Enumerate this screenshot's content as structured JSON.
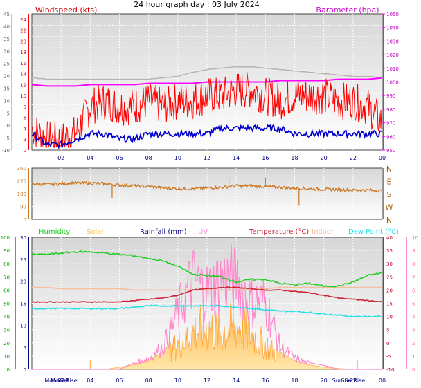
{
  "title": "24 hour graph day : 03 July 2024",
  "colors": {
    "wind": "#ff0000",
    "gust_avg": "#0000cc",
    "baro": "#ff00ff",
    "baro_grey": "#b4b4b4",
    "dir": "#cc7722",
    "humidity": "#22cc22",
    "solar": "#ffc04d",
    "rainfall": "#000080",
    "uv": "#ff88cc",
    "temperature": "#cc2233",
    "indoor": "#f5c0a0",
    "dewpoint": "#22e0e8"
  },
  "x_ticks": [
    "02",
    "04",
    "06",
    "08",
    "10",
    "12",
    "14",
    "16",
    "18",
    "20",
    "22",
    "00"
  ],
  "chart_data": [
    {
      "type": "line",
      "name": "wind-baro-panel",
      "title": "24 hour graph day : 03 July 2024",
      "left_axis": {
        "label": "Windspeed (kts)",
        "range": [
          0,
          25
        ],
        "ticks": [
          0,
          2,
          4,
          6,
          8,
          10,
          12,
          14,
          16,
          18,
          20,
          22,
          24
        ]
      },
      "outer_left_axis": {
        "range": [
          -10,
          45
        ],
        "ticks": [
          -10,
          -5,
          0,
          5,
          10,
          15,
          20,
          25,
          30,
          35,
          40,
          45
        ]
      },
      "right_axis": {
        "label": "Barometer (hpa)",
        "range": [
          950,
          1050
        ],
        "ticks": [
          950,
          960,
          970,
          980,
          990,
          1000,
          1010,
          1020,
          1030,
          1040,
          1050
        ]
      },
      "x": [
        0,
        1,
        2,
        3,
        4,
        5,
        6,
        7,
        8,
        9,
        10,
        11,
        12,
        13,
        14,
        15,
        16,
        17,
        18,
        19,
        20,
        21,
        22,
        23,
        24
      ],
      "series": [
        {
          "name": "Windspeed",
          "values": [
            4,
            2,
            2,
            3,
            8,
            9,
            8,
            8,
            9,
            8,
            9,
            9,
            10,
            10,
            11,
            11,
            10,
            9,
            10,
            10,
            10,
            9,
            9,
            8,
            5
          ]
        },
        {
          "name": "Barometer",
          "values": [
            998,
            997,
            997,
            997,
            998,
            998,
            998,
            998,
            999,
            999,
            999,
            999,
            1000,
            1000,
            1000,
            1000,
            1000,
            1001,
            1001,
            1001,
            1001,
            1002,
            1002,
            1002,
            1003
          ]
        },
        {
          "name": "grey trace",
          "values": [
            1003,
            1002,
            1002,
            1002,
            1002,
            1002,
            1002,
            1002,
            1002,
            1003,
            1004,
            1007,
            1009,
            1010,
            1011,
            1011,
            1010,
            1009,
            1008,
            1007,
            1006,
            1005,
            1004,
            1004,
            1003
          ]
        },
        {
          "name": "blue trace",
          "values": [
            3,
            1,
            1,
            2,
            3,
            3,
            2,
            2,
            3,
            3,
            3,
            3,
            3,
            4,
            4,
            4,
            4,
            4,
            3,
            3,
            3,
            3,
            3,
            3,
            3
          ]
        }
      ]
    },
    {
      "type": "line",
      "name": "direction-panel",
      "left_axis": {
        "range": [
          0,
          360
        ],
        "ticks": [
          0,
          90,
          180,
          270,
          360
        ]
      },
      "right_axis": {
        "ticks": [
          "N",
          "E",
          "S",
          "W",
          "N"
        ]
      },
      "x": [
        0,
        1,
        2,
        3,
        4,
        5,
        6,
        7,
        8,
        9,
        10,
        11,
        12,
        13,
        14,
        15,
        16,
        17,
        18,
        19,
        20,
        21,
        22,
        23,
        24
      ],
      "series": [
        {
          "name": "Wind direction",
          "values": [
            250,
            245,
            250,
            255,
            255,
            250,
            240,
            235,
            230,
            220,
            215,
            215,
            220,
            225,
            235,
            235,
            230,
            225,
            220,
            215,
            210,
            210,
            205,
            205,
            200
          ]
        }
      ]
    },
    {
      "type": "area",
      "name": "temp-hum-solar-panel",
      "legend": [
        "Humidity",
        "Solar",
        "Rainfall (mm)",
        "UV",
        "Temperature (°C)",
        "Indoor",
        "Dew Point (°C)"
      ],
      "left_axis": {
        "range": [
          0,
          100
        ],
        "ticks": [
          0,
          10,
          20,
          30,
          40,
          50,
          60,
          70,
          80,
          90,
          100
        ]
      },
      "rain_axis": {
        "range": [
          0,
          30
        ],
        "ticks": [
          0,
          5,
          10,
          15,
          20,
          25,
          30
        ]
      },
      "temp_axis": {
        "range": [
          -10,
          40
        ],
        "ticks": [
          -10,
          -5,
          0,
          5,
          10,
          15,
          20,
          25,
          30,
          35,
          40
        ]
      },
      "uv_axis": {
        "range": [
          0,
          10
        ],
        "ticks": [
          0,
          1,
          2,
          3,
          4,
          5,
          6,
          7,
          8,
          9,
          10
        ]
      },
      "bottom_labels": [
        "MoonRise",
        "MoonSet",
        "Sun Set",
        "Sun Rise"
      ],
      "x": [
        0,
        1,
        2,
        3,
        4,
        5,
        6,
        7,
        8,
        9,
        10,
        11,
        12,
        13,
        14,
        15,
        16,
        17,
        18,
        19,
        20,
        21,
        22,
        23,
        24
      ],
      "series": [
        {
          "name": "Humidity",
          "values": [
            87,
            87,
            88,
            89,
            89,
            88,
            87,
            86,
            84,
            82,
            78,
            72,
            71,
            70,
            66,
            68,
            68,
            65,
            64,
            65,
            63,
            63,
            66,
            71,
            73
          ]
        },
        {
          "name": "Temperature (°C)",
          "values": [
            15.5,
            15.5,
            15.5,
            15.5,
            15.5,
            15.5,
            15.5,
            16,
            16.5,
            17,
            18,
            20,
            20.5,
            21,
            21,
            20.5,
            20,
            20,
            19.5,
            19,
            18,
            17,
            16.5,
            16,
            15.5
          ]
        },
        {
          "name": "Dew Point (°C)",
          "values": [
            13,
            13,
            13,
            13,
            13,
            13,
            13,
            13.5,
            14,
            14,
            14,
            14,
            14,
            14,
            13.5,
            13,
            12.5,
            12,
            12,
            11.5,
            11,
            10.5,
            10,
            10,
            10
          ]
        },
        {
          "name": "Indoor",
          "values": [
            21,
            21,
            20.5,
            20.5,
            20.5,
            20.5,
            20.5,
            20,
            20,
            20,
            20,
            20,
            20,
            20,
            20,
            20.5,
            20.5,
            21,
            21,
            21,
            21,
            21,
            21,
            21,
            21
          ]
        },
        {
          "name": "Solar",
          "values": [
            0,
            0,
            0,
            0,
            0,
            0,
            0.5,
            1,
            2,
            4,
            8,
            12,
            13,
            12,
            14,
            11,
            8,
            4,
            2,
            1,
            0.5,
            0.2,
            0,
            0,
            0
          ]
        },
        {
          "name": "UV",
          "values": [
            0,
            0,
            0,
            0,
            0,
            0,
            0,
            0.5,
            1,
            2,
            5,
            8,
            7,
            8,
            8,
            6,
            6,
            2,
            1,
            0.5,
            0.3,
            0,
            0,
            0,
            0
          ]
        }
      ]
    }
  ]
}
